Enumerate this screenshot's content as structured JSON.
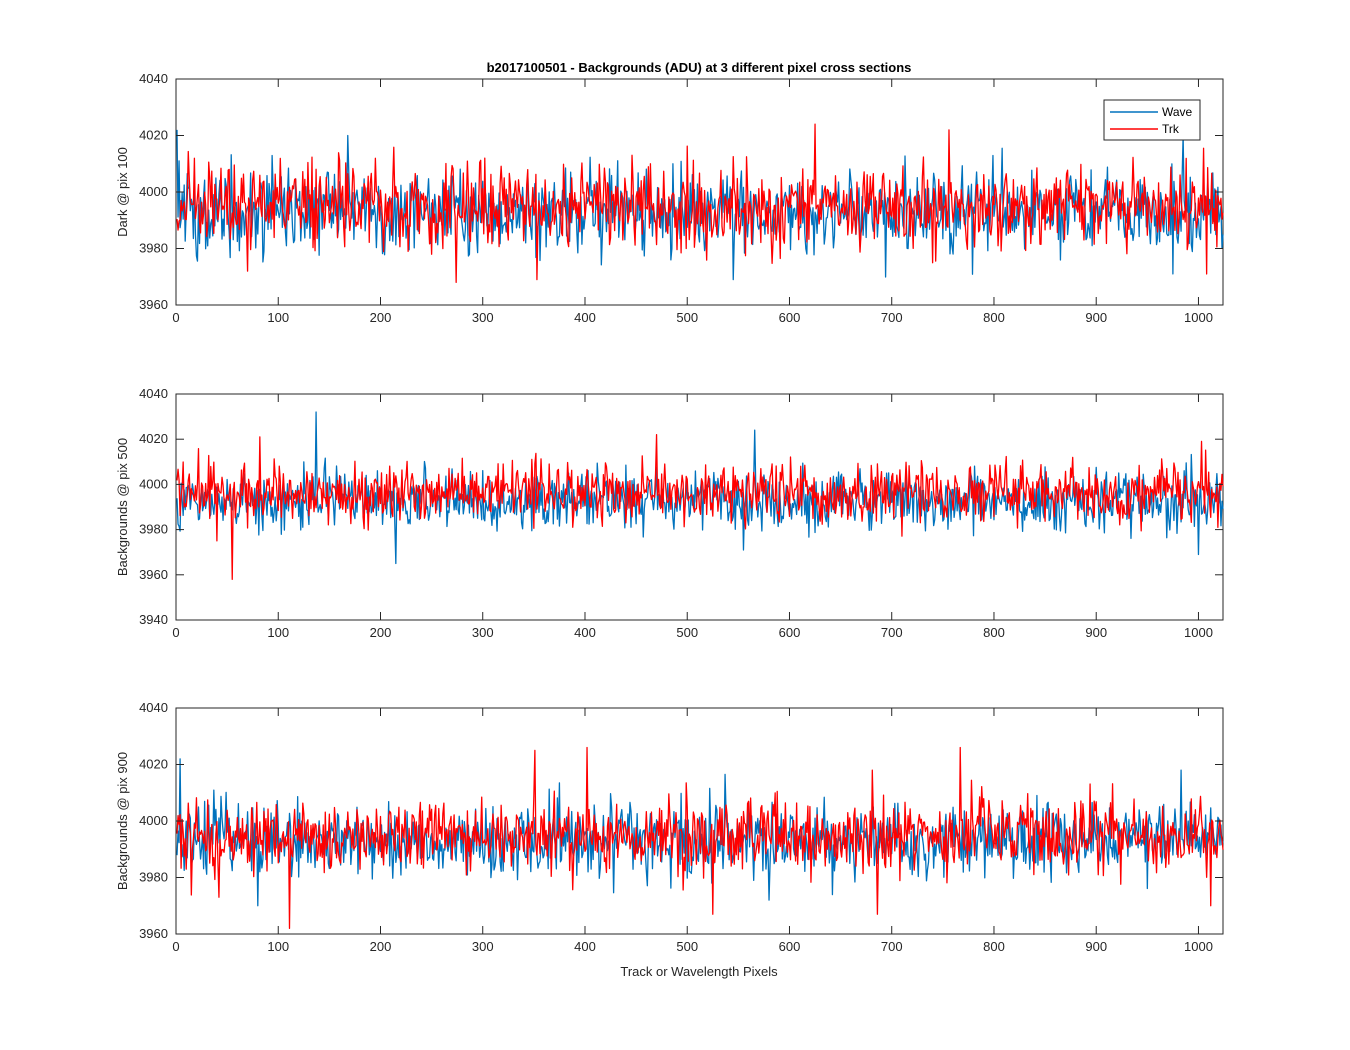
{
  "chart_data": [
    {
      "type": "line",
      "title": "b2017100501 - Backgrounds (ADU) at 3 different pixel cross sections",
      "xlabel": "",
      "ylabel": "Dark @ pix 100",
      "xlim": [
        0,
        1024
      ],
      "ylim": [
        3960,
        4040
      ],
      "xticks": [
        0,
        100,
        200,
        300,
        400,
        500,
        600,
        700,
        800,
        900,
        1000
      ],
      "yticks": [
        3960,
        3980,
        4000,
        4020,
        4040
      ],
      "x": {
        "start": 1,
        "end": 1024,
        "step": 1
      },
      "legend": [
        "Wave",
        "Trk"
      ],
      "legend_location": "top-right",
      "series": [
        {
          "name": "Wave",
          "color": "#0072BD",
          "mean": 3993,
          "sd": 7,
          "highlights": [
            [
              1,
              4022
            ],
            [
              3,
              4011
            ],
            [
              168,
              4020
            ],
            [
              545,
              3969
            ],
            [
              985,
              4020
            ],
            [
              975,
              3971
            ]
          ]
        },
        {
          "name": "Trk",
          "color": "#FF0000",
          "mean": 3995,
          "sd": 7,
          "highlights": [
            [
              274,
              3968
            ],
            [
              353,
              3969
            ],
            [
              625,
              4024
            ],
            [
              756,
              4022
            ],
            [
              70,
              3972
            ],
            [
              1008,
              3971
            ]
          ]
        }
      ]
    },
    {
      "type": "line",
      "title": "",
      "xlabel": "",
      "ylabel": "Backgrounds @ pix 500",
      "xlim": [
        0,
        1024
      ],
      "ylim": [
        3940,
        4040
      ],
      "xticks": [
        0,
        100,
        200,
        300,
        400,
        500,
        600,
        700,
        800,
        900,
        1000
      ],
      "yticks": [
        3940,
        3960,
        3980,
        4000,
        4020,
        4040
      ],
      "x": {
        "start": 1,
        "end": 1024,
        "step": 1
      },
      "series": [
        {
          "name": "Wave",
          "color": "#0072BD",
          "mean": 3993,
          "sd": 6.5,
          "highlights": [
            [
              137,
              4032
            ],
            [
              215,
              3965
            ],
            [
              566,
              4024
            ],
            [
              555,
              3971
            ],
            [
              1000,
              3969
            ]
          ]
        },
        {
          "name": "Trk",
          "color": "#FF0000",
          "mean": 3996,
          "sd": 6.5,
          "highlights": [
            [
              55,
              3958
            ],
            [
              82,
              4021
            ],
            [
              470,
              4022
            ],
            [
              1003,
              4019
            ],
            [
              40,
              3975
            ]
          ]
        }
      ]
    },
    {
      "type": "line",
      "title": "",
      "xlabel": "Track or Wavelength Pixels",
      "ylabel": "Backgrounds @ pix 900",
      "xlim": [
        0,
        1024
      ],
      "ylim": [
        3960,
        4040
      ],
      "xticks": [
        0,
        100,
        200,
        300,
        400,
        500,
        600,
        700,
        800,
        900,
        1000
      ],
      "yticks": [
        3960,
        3980,
        4000,
        4020,
        4040
      ],
      "x": {
        "start": 1,
        "end": 1024,
        "step": 1
      },
      "series": [
        {
          "name": "Wave",
          "color": "#0072BD",
          "mean": 3993,
          "sd": 6.5,
          "highlights": [
            [
              4,
              4022
            ],
            [
              983,
              4018
            ],
            [
              80,
              3970
            ],
            [
              580,
              3972
            ]
          ]
        },
        {
          "name": "Trk",
          "color": "#FF0000",
          "mean": 3995,
          "sd": 6.5,
          "highlights": [
            [
              111,
              3962
            ],
            [
              351,
              4025
            ],
            [
              402,
              4026
            ],
            [
              525,
              3967
            ],
            [
              686,
              3967
            ],
            [
              767,
              4026
            ],
            [
              42,
              3973
            ],
            [
              1012,
              3970
            ]
          ]
        }
      ]
    }
  ]
}
